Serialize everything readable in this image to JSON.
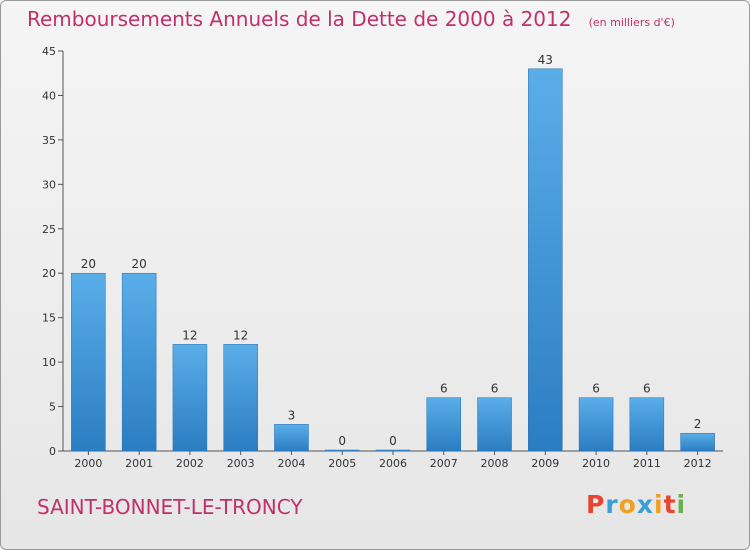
{
  "title": "Remboursements Annuels de la Dette de 2000 à 2012",
  "unit_note": "(en milliers d'€)",
  "city": "SAINT-BONNET-LE-TRONCY",
  "logo": {
    "text": "Proxiti",
    "letter_colors": [
      "#e8442f",
      "#3a9fd6",
      "#f0a020",
      "#3a9fd6",
      "#f0a020",
      "#e8442f",
      "#6ab04c"
    ]
  },
  "colors": {
    "title": "#c0306a",
    "bar_top": "#5aaee8",
    "bar_bottom": "#2b7dc2",
    "axis": "#555555"
  },
  "chart_data": {
    "type": "bar",
    "title": "Remboursements Annuels de la Dette de 2000 à 2012",
    "categories": [
      "2000",
      "2001",
      "2002",
      "2003",
      "2004",
      "2005",
      "2006",
      "2007",
      "2008",
      "2009",
      "2010",
      "2011",
      "2012"
    ],
    "values": [
      20,
      20,
      12,
      12,
      3,
      0,
      0,
      6,
      6,
      43,
      6,
      6,
      2
    ],
    "data_labels": [
      "20",
      "20",
      "12",
      "12",
      "3",
      "0",
      "0",
      "6",
      "6",
      "43",
      "6",
      "6",
      "2"
    ],
    "ylim": [
      0,
      45
    ],
    "yticks": [
      0,
      5,
      10,
      15,
      20,
      25,
      30,
      35,
      40,
      45
    ],
    "grid": false,
    "xlabel": "",
    "ylabel": ""
  }
}
